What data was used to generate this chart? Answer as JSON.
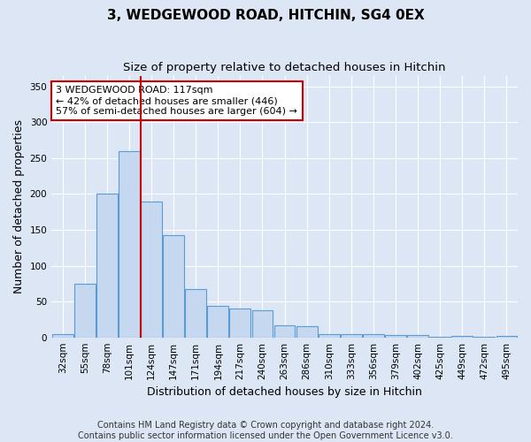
{
  "title1": "3, WEDGEWOOD ROAD, HITCHIN, SG4 0EX",
  "title2": "Size of property relative to detached houses in Hitchin",
  "xlabel": "Distribution of detached houses by size in Hitchin",
  "ylabel": "Number of detached properties",
  "categories": [
    "32sqm",
    "55sqm",
    "78sqm",
    "101sqm",
    "124sqm",
    "147sqm",
    "171sqm",
    "194sqm",
    "217sqm",
    "240sqm",
    "263sqm",
    "286sqm",
    "310sqm",
    "333sqm",
    "356sqm",
    "379sqm",
    "402sqm",
    "425sqm",
    "449sqm",
    "472sqm",
    "495sqm"
  ],
  "values": [
    5,
    75,
    200,
    260,
    190,
    143,
    68,
    44,
    40,
    38,
    17,
    16,
    5,
    4,
    4,
    3,
    3,
    1,
    2,
    1,
    2
  ],
  "bar_color": "#c5d8f0",
  "bar_edge_color": "#5b9bd5",
  "vline_x": 3.5,
  "vline_color": "#cc0000",
  "annotation_text": "3 WEDGEWOOD ROAD: 117sqm\n← 42% of detached houses are smaller (446)\n57% of semi-detached houses are larger (604) →",
  "annotation_box_color": "#ffffff",
  "annotation_box_edge": "#cc0000",
  "ylim": [
    0,
    365
  ],
  "yticks": [
    0,
    50,
    100,
    150,
    200,
    250,
    300,
    350
  ],
  "footer": "Contains HM Land Registry data © Crown copyright and database right 2024.\nContains public sector information licensed under the Open Government Licence v3.0.",
  "background_color": "#dce6f5",
  "plot_background": "#dce6f5",
  "grid_color": "#ffffff",
  "title_fontsize": 11,
  "subtitle_fontsize": 9.5,
  "axis_label_fontsize": 9,
  "tick_fontsize": 7.5,
  "footer_fontsize": 7
}
